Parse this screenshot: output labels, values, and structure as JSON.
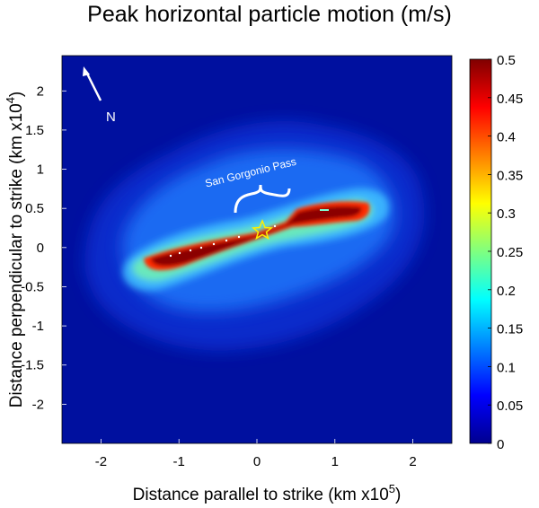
{
  "chart_data": {
    "type": "heatmap",
    "title": "Peak horizontal particle motion (m/s)",
    "xlabel": "Distance parallel to strike (km x10",
    "xlabel_exp": "5",
    "xlabel_end": ")",
    "ylabel": "Distance perpendicular to strike (km x10",
    "ylabel_exp": "4",
    "ylabel_end": ")",
    "xlim": [
      -2.5,
      2.5
    ],
    "ylim": [
      -2.5,
      2.45
    ],
    "x_ticks": [
      "-2",
      "-1",
      "0",
      "1",
      "2"
    ],
    "x_tick_values": [
      -2,
      -1,
      0,
      1,
      2
    ],
    "y_ticks": [
      "2",
      "1.5",
      "1",
      "0.5",
      "0",
      "-0.5",
      "-1",
      "-1.5",
      "-2"
    ],
    "y_tick_values": [
      2,
      1.5,
      1,
      0.5,
      0,
      -0.5,
      -1,
      -1.5,
      -2
    ],
    "colorbar": {
      "min": 0,
      "max": 0.5,
      "ticks": [
        "0.5",
        "0.45",
        "0.4",
        "0.35",
        "0.3",
        "0.25",
        "0.2",
        "0.15",
        "0.1",
        "0.05",
        "0"
      ],
      "tick_values": [
        0.5,
        0.45,
        0.4,
        0.35,
        0.3,
        0.25,
        0.2,
        0.15,
        0.1,
        0.05,
        0
      ],
      "colormap": "jet"
    },
    "annotations": {
      "north_label": "N",
      "pass_label": "San Gorgonio Pass"
    },
    "epicenter": {
      "x": 0.07,
      "y": 0.27
    },
    "fault_trace": [
      [
        -1.3,
        -0.15
      ],
      [
        0.4,
        0.45
      ],
      [
        1.3,
        0.55
      ]
    ],
    "colors": {
      "background": "#00109f",
      "halo": "#1e78ff",
      "core": "#8b0000",
      "edge": "#ff2a00"
    }
  }
}
